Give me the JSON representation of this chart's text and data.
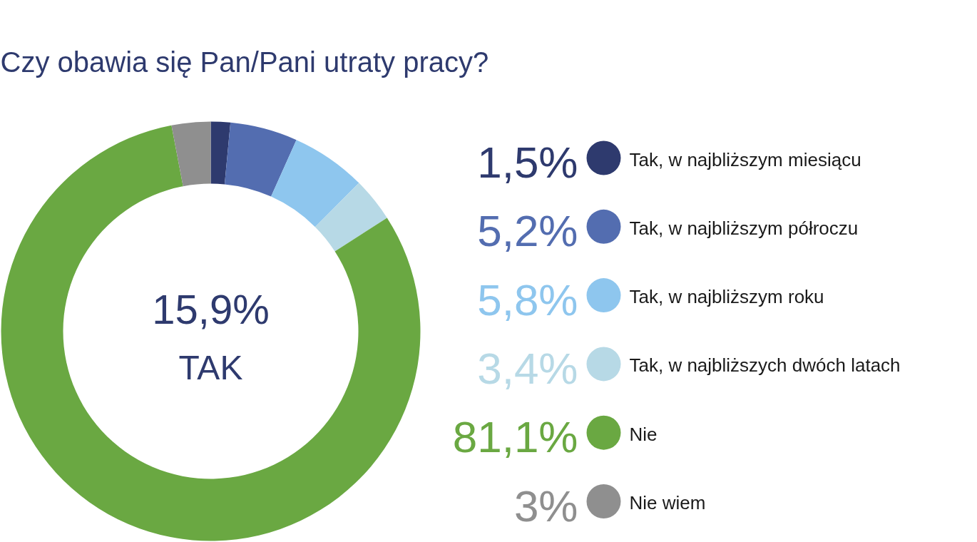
{
  "chart_data": {
    "type": "donut",
    "title": "Czy obawia się Pan/Pani utraty pracy?",
    "categories": [
      "Tak, w najbliższym miesiącu",
      "Tak, w najbliższym półroczu",
      "Tak, w najbliższym roku",
      "Tak, w najbliższych dwóch latach",
      "Nie",
      "Nie wiem"
    ],
    "values": [
      1.5,
      5.2,
      5.8,
      3.4,
      81.1,
      3
    ],
    "colors": [
      "#2e3a6e",
      "#536db0",
      "#8ec6ee",
      "#b7d9e6",
      "#6aa842",
      "#8f8f8f"
    ],
    "value_labels": [
      "1,5%",
      "5,2%",
      "5,8%",
      "3,4%",
      "81,1%",
      "3%"
    ],
    "annotations": [
      "15,9%",
      "TAK"
    ],
    "legend": "right"
  }
}
